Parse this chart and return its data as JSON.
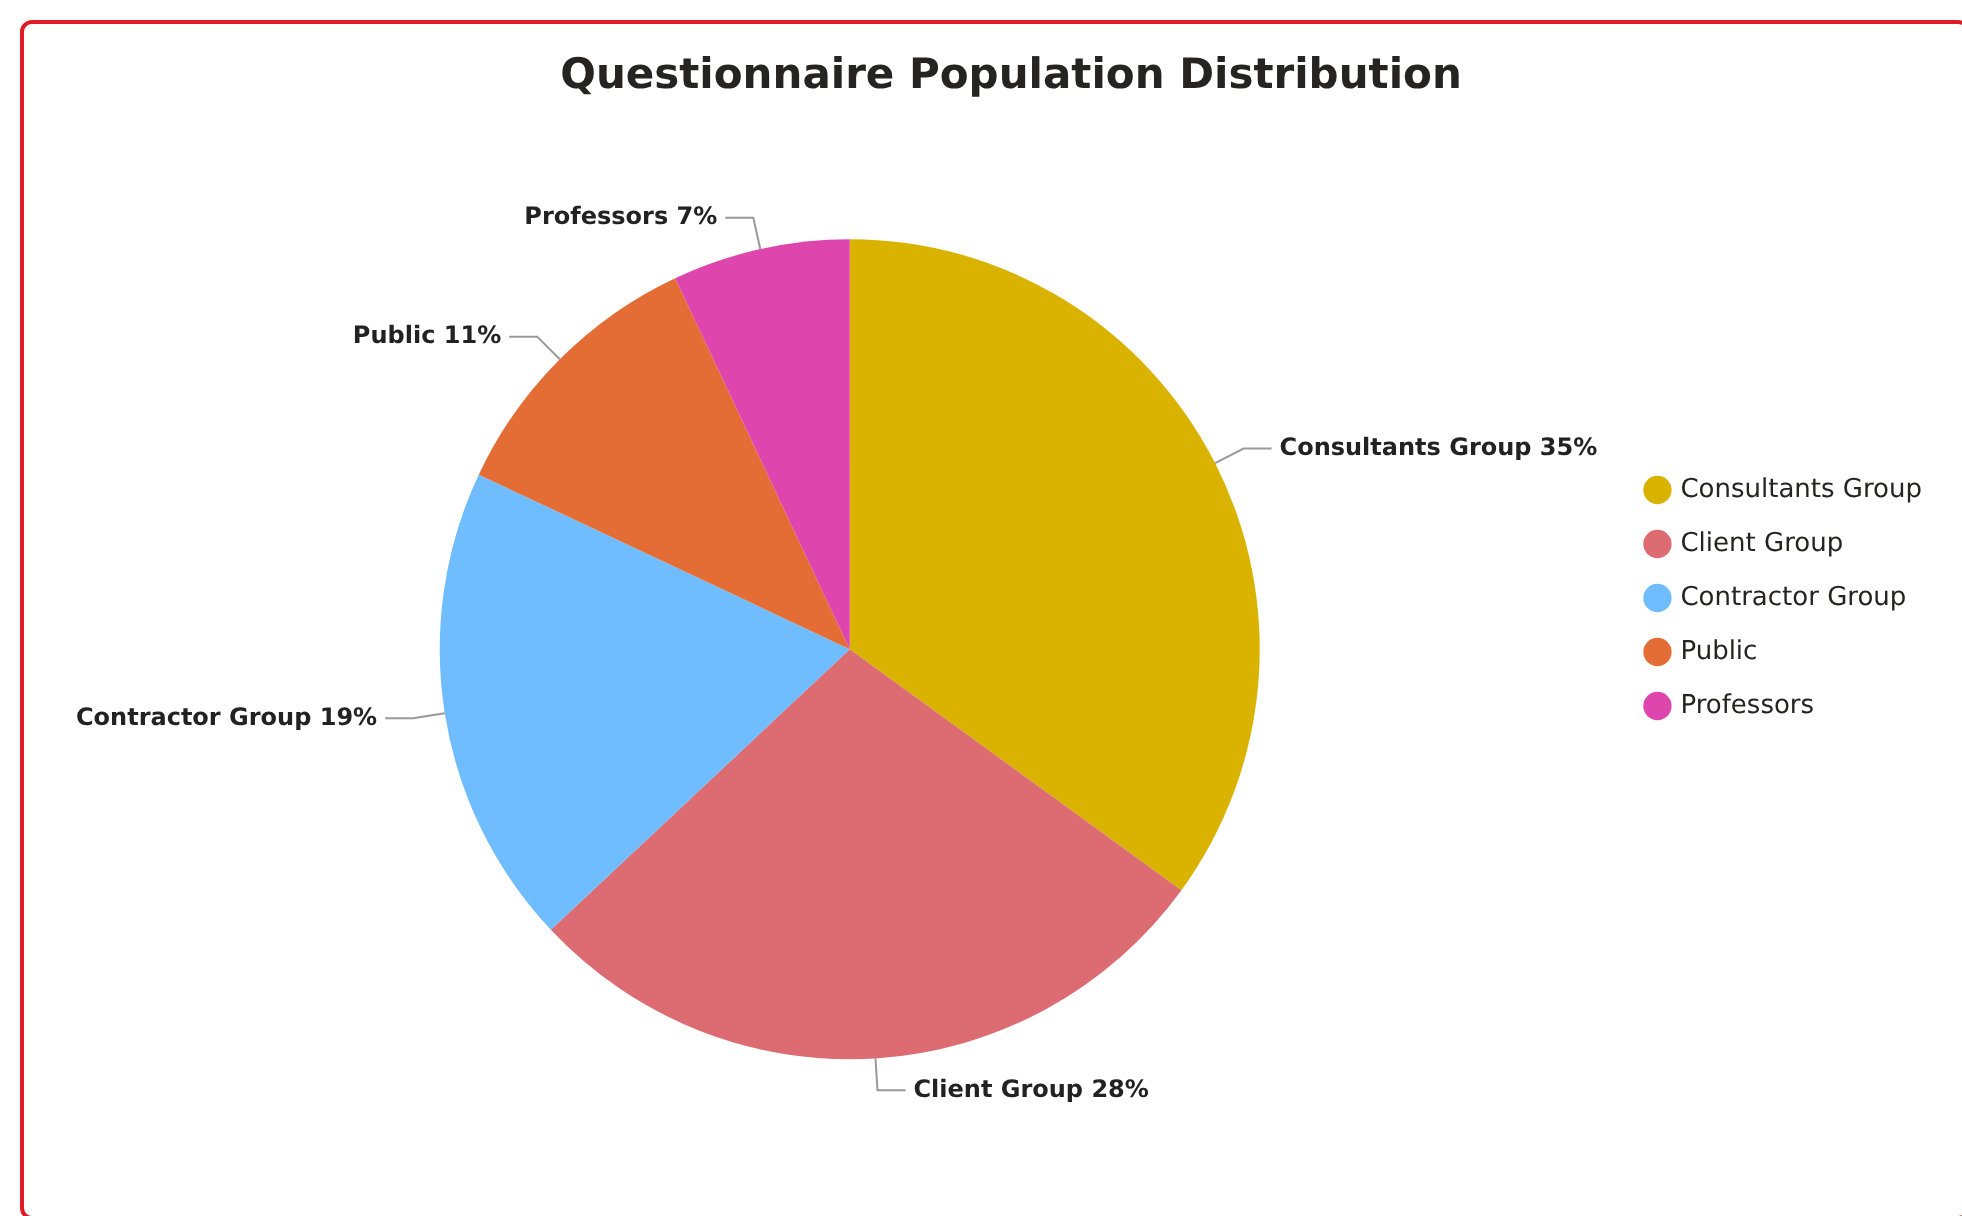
{
  "chart_data": {
    "type": "pie",
    "title": "Questionnaire Population Distribution",
    "categories": [
      "Consultants Group",
      "Client Group",
      "Contractor Group",
      "Public",
      "Professors"
    ],
    "values": [
      35,
      28,
      19,
      11,
      7
    ],
    "colors": [
      "#d9b300",
      "#dd6b72",
      "#6fbcff",
      "#e46c35",
      "#df46ad"
    ],
    "value_labels": [
      "35%",
      "28%",
      "19%",
      "11%",
      "7%"
    ],
    "legend": "right"
  }
}
